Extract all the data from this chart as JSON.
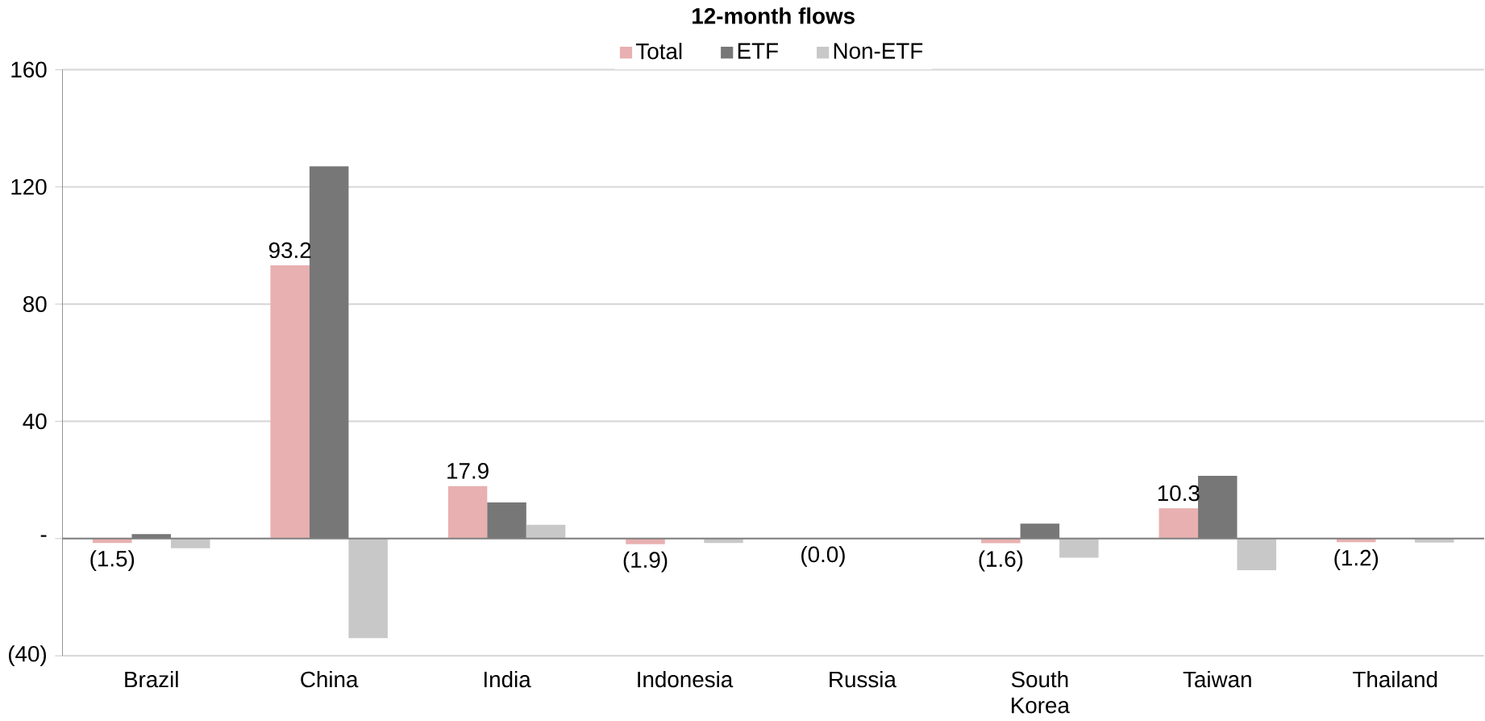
{
  "chart_data": {
    "type": "bar",
    "title": "12-month flows",
    "categories": [
      "Brazil",
      "China",
      "India",
      "Indonesia",
      "Russia",
      "South Korea",
      "Taiwan",
      "Thailand"
    ],
    "series": [
      {
        "name": "Total",
        "color": "#e8b0b0",
        "values": [
          -1.5,
          93.2,
          17.9,
          -1.9,
          -0.04,
          -1.6,
          10.3,
          -1.2
        ],
        "value_labels": [
          "(1.5)",
          "93.2",
          "17.9",
          "(1.9)",
          "(0.0)",
          "(1.6)",
          "10.3",
          "(1.2)"
        ]
      },
      {
        "name": "ETF",
        "color": "#777777",
        "values": [
          1.5,
          127,
          12.3,
          0.2,
          null,
          5.1,
          21.4,
          null
        ]
      },
      {
        "name": "Non-ETF",
        "color": "#c8c8c8",
        "values": [
          -3.3,
          -34,
          4.7,
          -1.5,
          null,
          -6.5,
          -10.8,
          -1.4
        ]
      }
    ],
    "ylim": [
      -40,
      160
    ],
    "yticks": [
      {
        "value": -40,
        "label": "(40)"
      },
      {
        "value": 0,
        "label": "-"
      },
      40,
      80,
      120,
      160
    ],
    "grid": "y",
    "legend": "top"
  }
}
